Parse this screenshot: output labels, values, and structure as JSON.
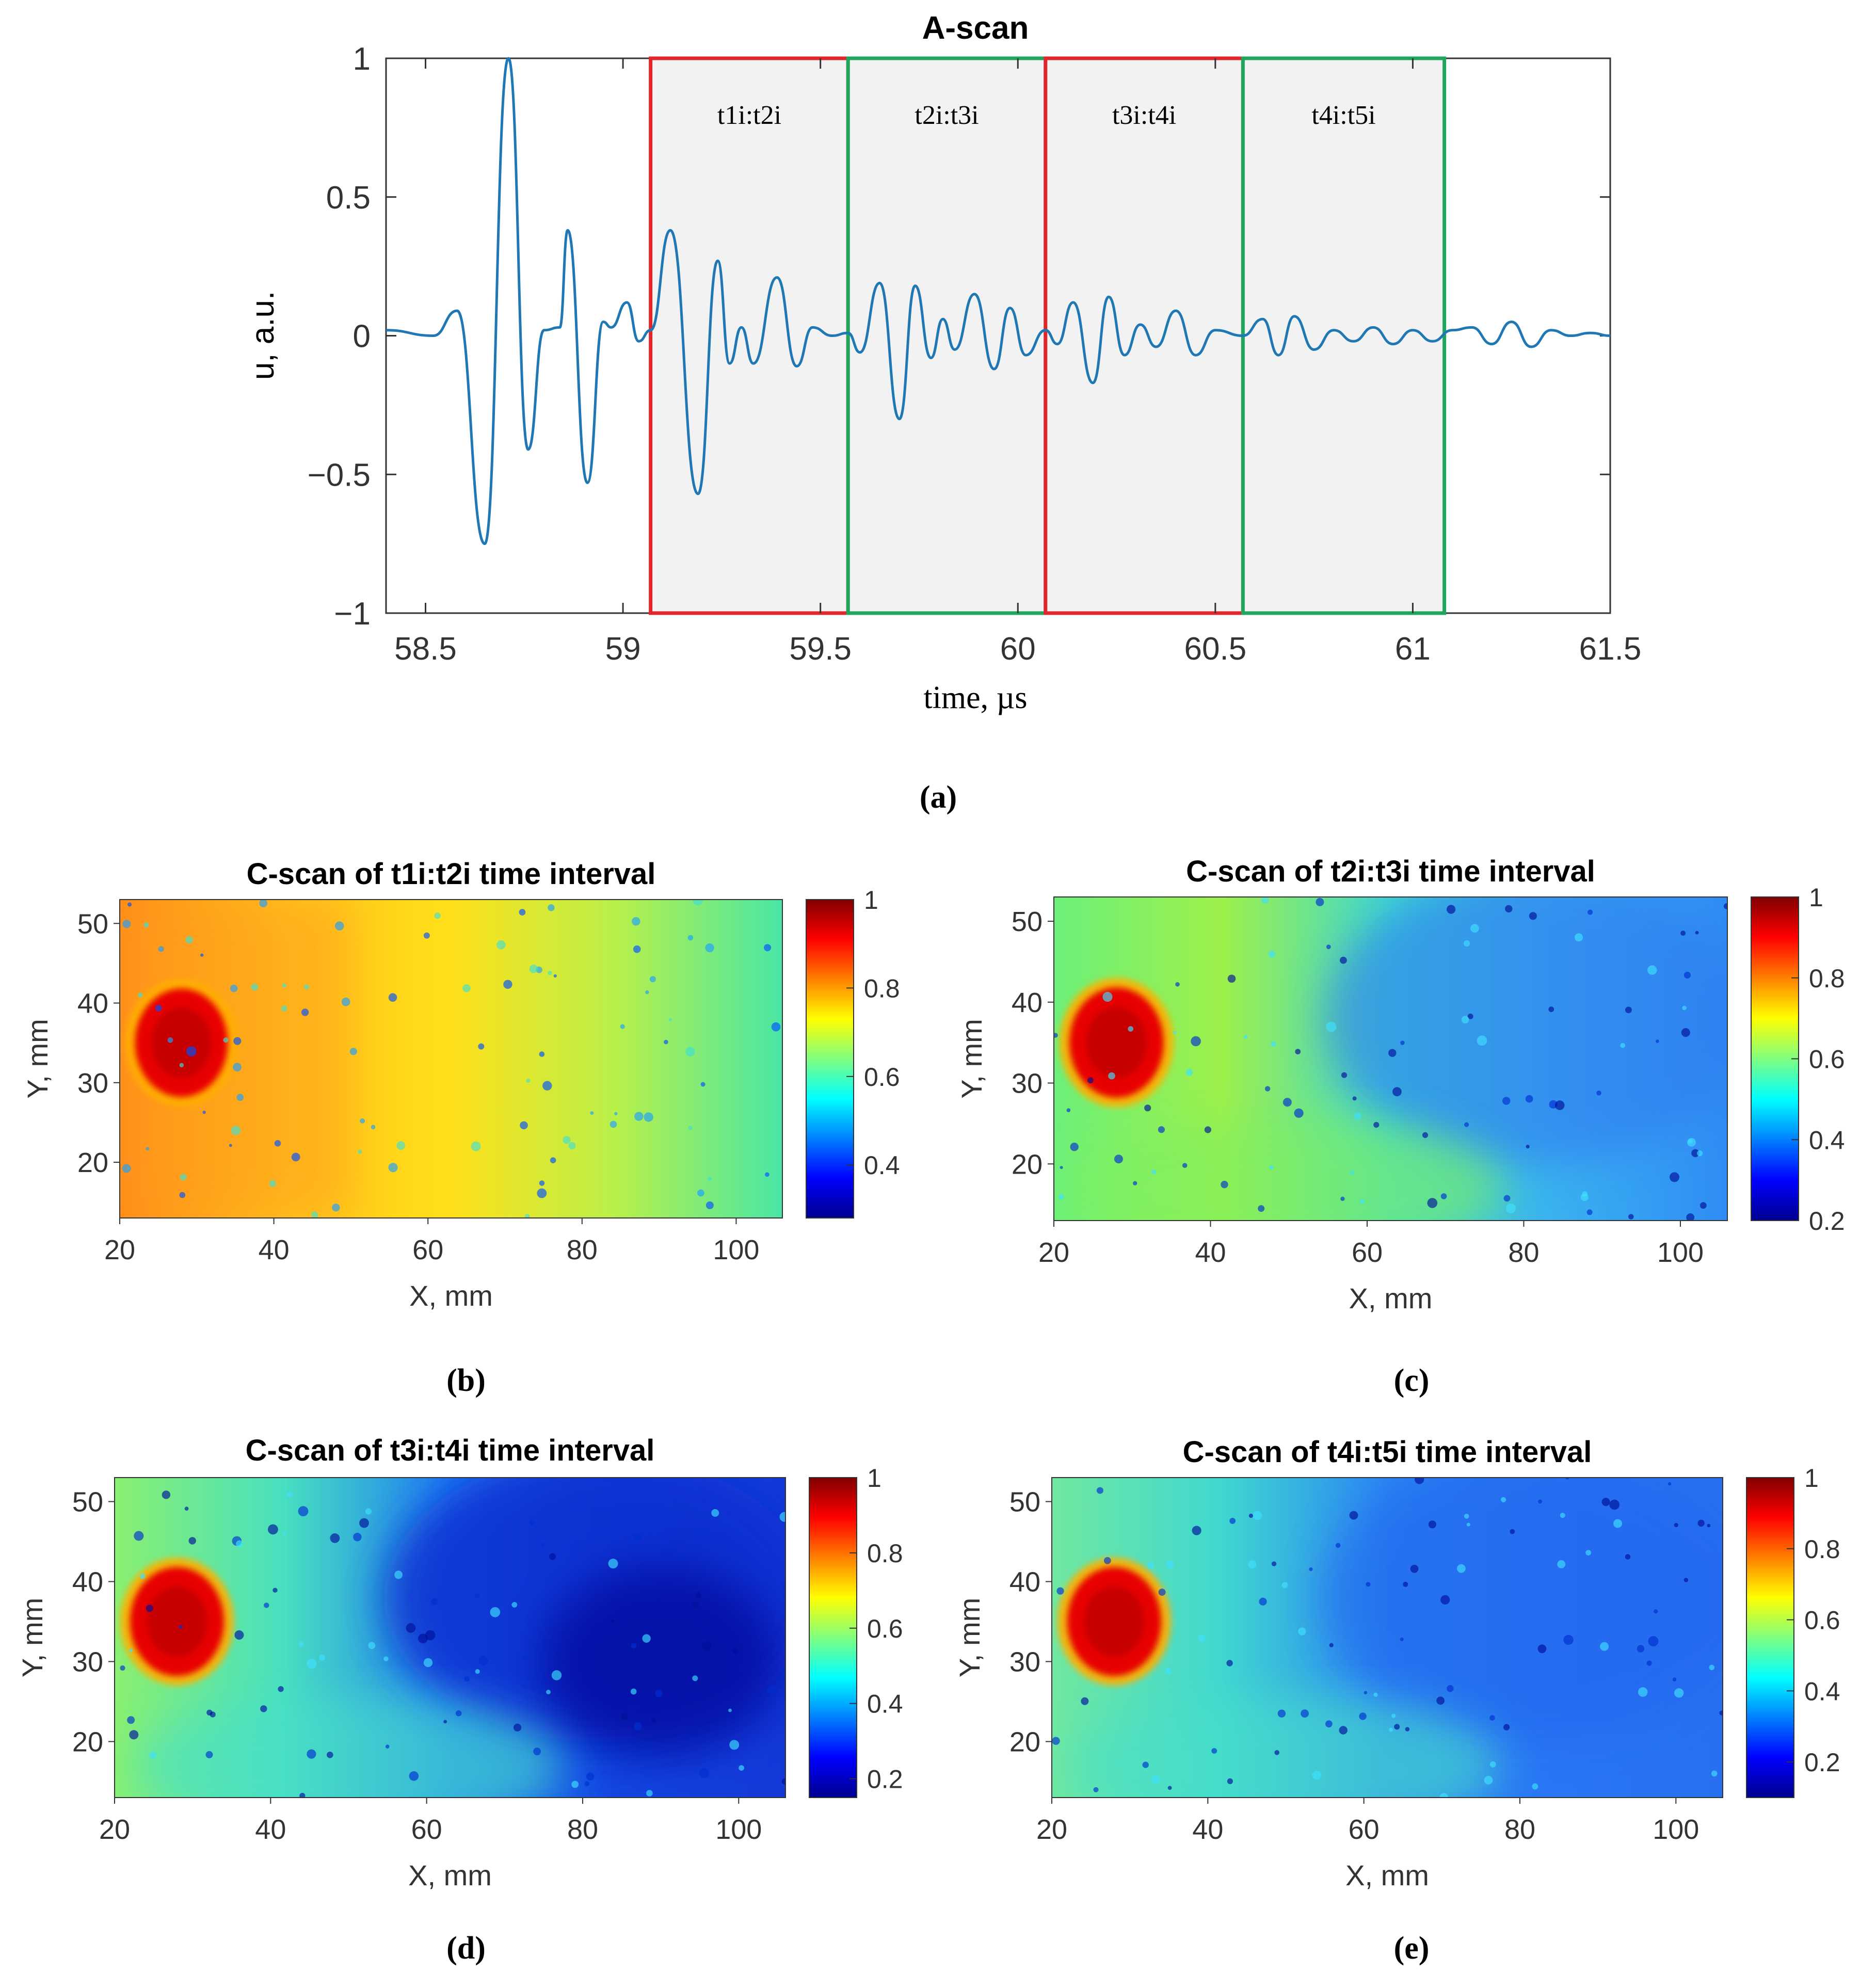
{
  "chart_data": [
    {
      "type": "line",
      "id": "a",
      "title": "A-scan",
      "xlabel": "time, µs",
      "ylabel": "u, a.u.",
      "xlim": [
        58.4,
        61.5
      ],
      "ylim": [
        -1,
        1
      ],
      "xticks": [
        "58.5",
        "59",
        "59.5",
        "60",
        "60.5",
        "61",
        "61.5"
      ],
      "yticks": [
        "1",
        "0.5",
        "0",
        "−0.5",
        "−1"
      ],
      "line_color": "#1f77b4",
      "windows": [
        {
          "label": "t1i:t2i",
          "start": 59.07,
          "end": 59.57,
          "color": "#e0262b"
        },
        {
          "label": "t2i:t3i",
          "start": 59.57,
          "end": 60.07,
          "color": "#1fa55c"
        },
        {
          "label": "t3i:t4i",
          "start": 60.07,
          "end": 60.57,
          "color": "#e0262b"
        },
        {
          "label": "t4i:t5i",
          "start": 60.57,
          "end": 61.08,
          "color": "#1fa55c"
        }
      ],
      "signal_peaks": [
        [
          58.4,
          0.02
        ],
        [
          58.52,
          0.0
        ],
        [
          58.58,
          0.09
        ],
        [
          58.65,
          -0.75
        ],
        [
          58.71,
          1.0
        ],
        [
          58.76,
          -0.41
        ],
        [
          58.8,
          0.02
        ],
        [
          58.84,
          0.03
        ],
        [
          58.86,
          0.38
        ],
        [
          58.91,
          -0.53
        ],
        [
          58.95,
          0.05
        ],
        [
          58.97,
          0.03
        ],
        [
          59.01,
          0.12
        ],
        [
          59.04,
          -0.02
        ],
        [
          59.07,
          0.02
        ],
        [
          59.12,
          0.38
        ],
        [
          59.19,
          -0.57
        ],
        [
          59.24,
          0.27
        ],
        [
          59.27,
          -0.1
        ],
        [
          59.3,
          0.03
        ],
        [
          59.33,
          -0.1
        ],
        [
          59.39,
          0.21
        ],
        [
          59.44,
          -0.11
        ],
        [
          59.48,
          0.03
        ],
        [
          59.53,
          0.0
        ],
        [
          59.57,
          0.01
        ],
        [
          59.6,
          -0.06
        ],
        [
          59.65,
          0.19
        ],
        [
          59.7,
          -0.3
        ],
        [
          59.74,
          0.18
        ],
        [
          59.78,
          -0.08
        ],
        [
          59.81,
          0.06
        ],
        [
          59.84,
          -0.05
        ],
        [
          59.89,
          0.15
        ],
        [
          59.94,
          -0.12
        ],
        [
          59.98,
          0.1
        ],
        [
          60.02,
          -0.07
        ],
        [
          60.07,
          0.02
        ],
        [
          60.1,
          -0.03
        ],
        [
          60.14,
          0.12
        ],
        [
          60.19,
          -0.17
        ],
        [
          60.23,
          0.14
        ],
        [
          60.27,
          -0.07
        ],
        [
          60.31,
          0.04
        ],
        [
          60.35,
          -0.04
        ],
        [
          60.4,
          0.09
        ],
        [
          60.45,
          -0.07
        ],
        [
          60.5,
          0.02
        ],
        [
          60.57,
          0.0
        ],
        [
          60.62,
          0.06
        ],
        [
          60.66,
          -0.07
        ],
        [
          60.7,
          0.07
        ],
        [
          60.75,
          -0.05
        ],
        [
          60.8,
          0.02
        ],
        [
          60.85,
          -0.02
        ],
        [
          60.9,
          0.03
        ],
        [
          60.95,
          -0.03
        ],
        [
          61.0,
          0.02
        ],
        [
          61.05,
          -0.02
        ],
        [
          61.1,
          0.02
        ],
        [
          61.15,
          0.03
        ],
        [
          61.2,
          -0.03
        ],
        [
          61.25,
          0.05
        ],
        [
          61.3,
          -0.04
        ],
        [
          61.35,
          0.02
        ],
        [
          61.4,
          0.0
        ],
        [
          61.45,
          0.01
        ],
        [
          61.5,
          0.0
        ]
      ],
      "caption": "(a)"
    },
    {
      "type": "heatmap",
      "id": "b",
      "title": "C-scan of t1i:t2i time interval",
      "xlabel": "X, mm",
      "ylabel": "Y, mm",
      "xlim": [
        20,
        106
      ],
      "ylim": [
        13,
        53
      ],
      "xticks": [
        "20",
        "40",
        "60",
        "80",
        "100"
      ],
      "yticks": [
        "50",
        "40",
        "30",
        "20"
      ],
      "colorbar_ticks": [
        "1",
        "0.8",
        "0.6",
        "0.4"
      ],
      "colorbar_range": [
        0.28,
        1.0
      ],
      "caption": "(b)"
    },
    {
      "type": "heatmap",
      "id": "c",
      "title": "C-scan of t2i:t3i time interval",
      "xlabel": "X, mm",
      "ylabel": "Y, mm",
      "xlim": [
        20,
        106
      ],
      "ylim": [
        13,
        53
      ],
      "xticks": [
        "20",
        "40",
        "60",
        "80",
        "100"
      ],
      "yticks": [
        "50",
        "40",
        "30",
        "20"
      ],
      "colorbar_ticks": [
        "1",
        "0.8",
        "0.6",
        "0.4",
        "0.2"
      ],
      "colorbar_range": [
        0.2,
        1.0
      ],
      "caption": "(c)"
    },
    {
      "type": "heatmap",
      "id": "d",
      "title": "C-scan of t3i:t4i time interval",
      "xlabel": "X, mm",
      "ylabel": "Y, mm",
      "xlim": [
        20,
        106
      ],
      "ylim": [
        13,
        53
      ],
      "xticks": [
        "20",
        "40",
        "60",
        "80",
        "100"
      ],
      "yticks": [
        "50",
        "40",
        "30",
        "20"
      ],
      "colorbar_ticks": [
        "1",
        "0.8",
        "0.6",
        "0.4",
        "0.2"
      ],
      "colorbar_range": [
        0.15,
        1.0
      ],
      "caption": "(d)"
    },
    {
      "type": "heatmap",
      "id": "e",
      "title": "C-scan of t4i:t5i time interval",
      "xlabel": "X, mm",
      "ylabel": "Y, mm",
      "xlim": [
        20,
        106
      ],
      "ylim": [
        13,
        53
      ],
      "xticks": [
        "20",
        "40",
        "60",
        "80",
        "100"
      ],
      "yticks": [
        "50",
        "40",
        "30",
        "20"
      ],
      "colorbar_ticks": [
        "1",
        "0.8",
        "0.6",
        "0.4",
        "0.2"
      ],
      "colorbar_range": [
        0.1,
        1.0
      ],
      "caption": "(e)"
    }
  ]
}
